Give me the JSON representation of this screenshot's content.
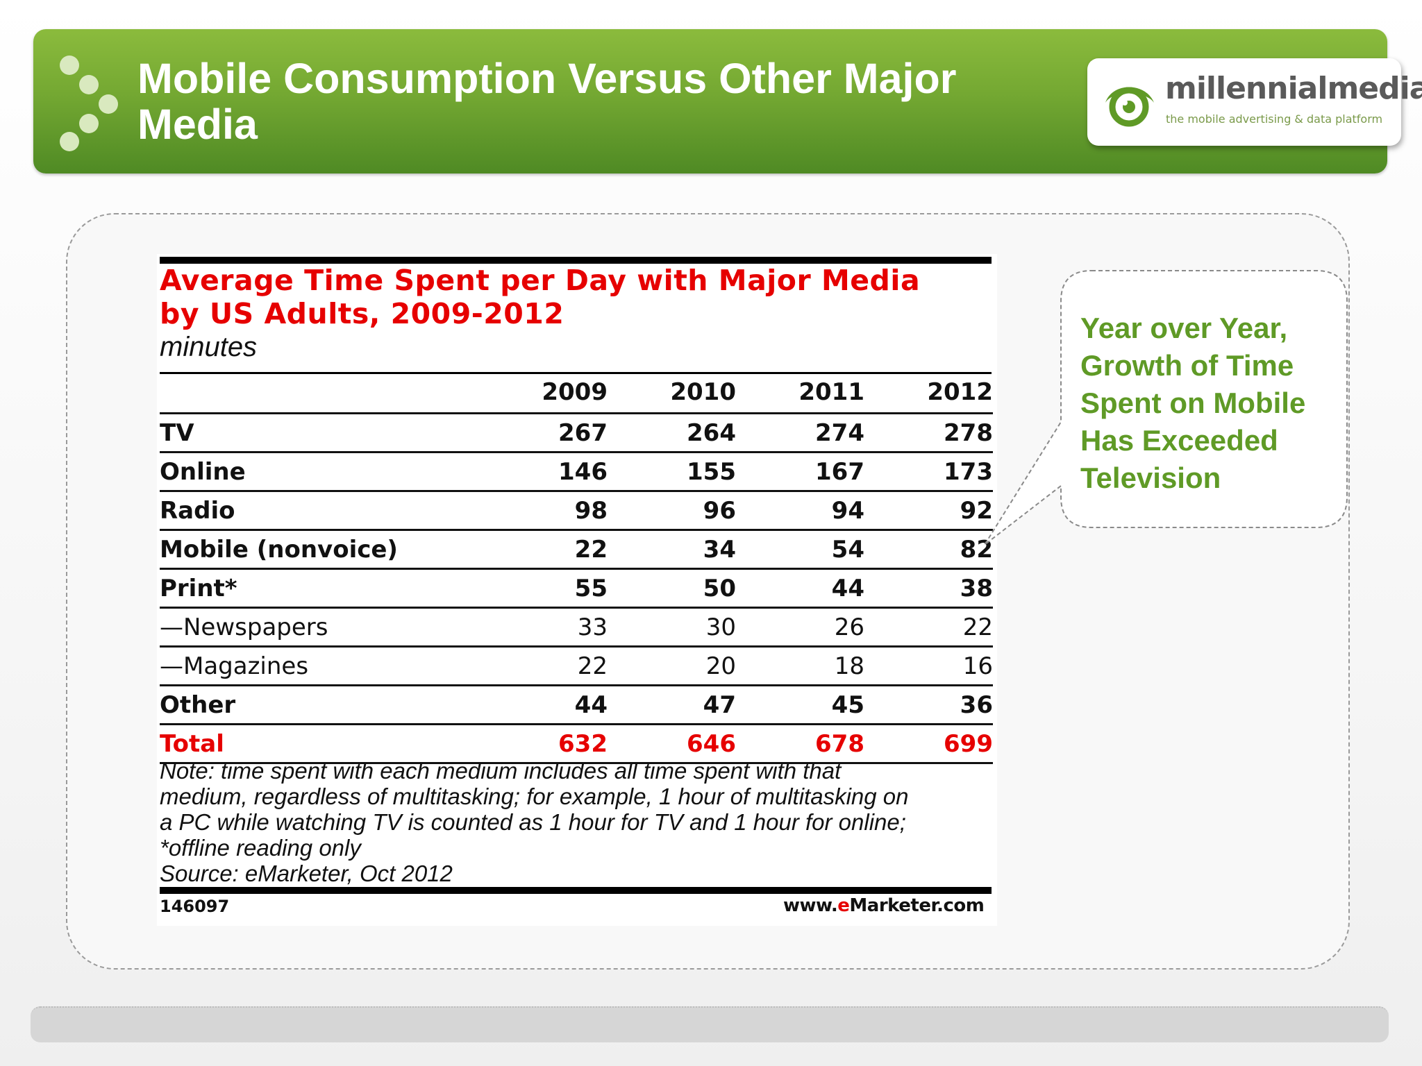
{
  "banner": {
    "title_line1": "Mobile Consumption Versus Other Major",
    "title_line2": "Media"
  },
  "logo": {
    "name": "millennialmedia",
    "tagline": "the mobile advertising & data platform",
    "icon": "eye-icon"
  },
  "colors": {
    "banner_green": "#74a832",
    "title_red": "#e60000",
    "callout_green": "#5f9a26"
  },
  "chart_data": {
    "type": "table",
    "title_line1": "Average Time Spent per Day with Major Media",
    "title_line2": "by US Adults, 2009-2012",
    "unit": "minutes",
    "columns": [
      "",
      "2009",
      "2010",
      "2011",
      "2012"
    ],
    "rows": [
      {
        "label": "TV",
        "values": [
          "267",
          "264",
          "274",
          "278"
        ],
        "style": "bold"
      },
      {
        "label": "Online",
        "values": [
          "146",
          "155",
          "167",
          "173"
        ],
        "style": "bold"
      },
      {
        "label": "Radio",
        "values": [
          "98",
          "96",
          "94",
          "92"
        ],
        "style": "bold"
      },
      {
        "label": "Mobile (nonvoice)",
        "values": [
          "22",
          "34",
          "54",
          "82"
        ],
        "style": "bold"
      },
      {
        "label": "Print*",
        "values": [
          "55",
          "50",
          "44",
          "38"
        ],
        "style": "bold"
      },
      {
        "label": "—Newspapers",
        "values": [
          "33",
          "30",
          "26",
          "22"
        ],
        "style": "sub"
      },
      {
        "label": "—Magazines",
        "values": [
          "22",
          "20",
          "18",
          "16"
        ],
        "style": "sub"
      },
      {
        "label": "Other",
        "values": [
          "44",
          "47",
          "45",
          "36"
        ],
        "style": "bold"
      },
      {
        "label": "Total",
        "values": [
          "632",
          "646",
          "678",
          "699"
        ],
        "style": "total"
      }
    ],
    "note_lines": [
      "Note: time spent with each medium includes all time spent with that",
      "medium, regardless of multitasking; for example, 1 hour of multitasking on",
      "a PC while watching TV is counted as 1 hour for TV and 1 hour for online;",
      "*offline reading only",
      "Source: eMarketer, Oct 2012"
    ],
    "footer_id": "146097",
    "footer_url_pre": "www.",
    "footer_url_brand_e": "e",
    "footer_url_brand_rest": "Marketer",
    "footer_url_post": ".com"
  },
  "callout": {
    "lines": [
      "Year over Year,",
      "Growth of Time",
      "Spent on Mobile",
      "Has Exceeded",
      "Television"
    ]
  }
}
